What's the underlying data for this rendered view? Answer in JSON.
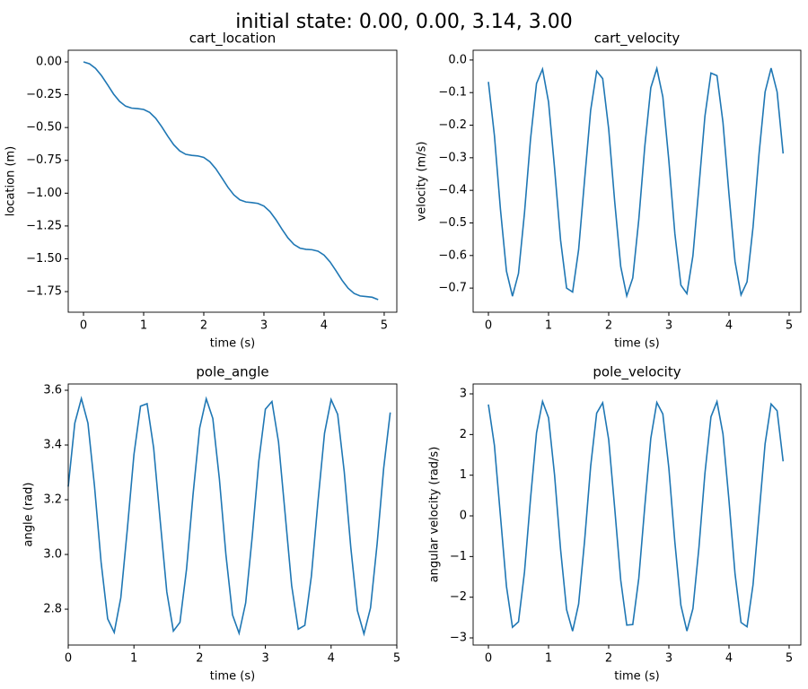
{
  "title": "initial state: 0.00, 0.00, 3.14, 3.00",
  "chart_data": [
    {
      "type": "line",
      "title": "cart_location",
      "xlabel": "time (s)",
      "ylabel": "location (m)",
      "x": [
        0,
        0.1,
        0.2,
        0.3,
        0.4,
        0.5,
        0.6,
        0.7,
        0.8,
        0.9,
        1,
        1.1,
        1.2,
        1.3,
        1.4,
        1.5,
        1.6,
        1.7,
        1.8,
        1.9,
        2,
        2.1,
        2.2,
        2.3,
        2.4,
        2.5,
        2.6,
        2.7,
        2.8,
        2.9,
        3,
        3.1,
        3.2,
        3.3,
        3.4,
        3.5,
        3.6,
        3.7,
        3.8,
        3.9,
        4,
        4.1,
        4.2,
        4.3,
        4.4,
        4.5,
        4.6,
        4.7,
        4.8,
        4.9
      ],
      "series": [
        {
          "color": "#1f77b4",
          "values": [
            0.0,
            -0.014,
            -0.049,
            -0.105,
            -0.174,
            -0.245,
            -0.301,
            -0.337,
            -0.352,
            -0.356,
            -0.362,
            -0.385,
            -0.429,
            -0.493,
            -0.565,
            -0.631,
            -0.678,
            -0.704,
            -0.712,
            -0.716,
            -0.728,
            -0.76,
            -0.814,
            -0.883,
            -0.954,
            -1.013,
            -1.051,
            -1.067,
            -1.072,
            -1.078,
            -1.098,
            -1.14,
            -1.202,
            -1.274,
            -1.341,
            -1.391,
            -1.419,
            -1.428,
            -1.431,
            -1.442,
            -1.472,
            -1.524,
            -1.592,
            -1.664,
            -1.724,
            -1.764,
            -1.783,
            -1.788,
            -1.793,
            -1.811
          ]
        }
      ],
      "xlim": [
        -0.254,
        5.21
      ],
      "ylim": [
        -1.907,
        0.089
      ],
      "xticks": [
        0,
        1,
        2,
        3,
        4,
        5
      ],
      "yticks": [
        {
          "value": -1.75,
          "label": "−1.75"
        },
        {
          "value": -1.5,
          "label": "−1.50"
        },
        {
          "value": -1.25,
          "label": "−1.25"
        },
        {
          "value": -1,
          "label": "−1.00"
        },
        {
          "value": -0.75,
          "label": "−0.75"
        },
        {
          "value": -0.5,
          "label": "−0.50"
        },
        {
          "value": -0.25,
          "label": "−0.25"
        },
        {
          "value": 0,
          "label": "0.00"
        }
      ]
    },
    {
      "type": "line",
      "title": "cart_velocity",
      "xlabel": "time (s)",
      "ylabel": "velocity (m/s)",
      "x": [
        0,
        0.1,
        0.2,
        0.3,
        0.4,
        0.5,
        0.6,
        0.7,
        0.8,
        0.9,
        1,
        1.1,
        1.2,
        1.3,
        1.4,
        1.5,
        1.6,
        1.7,
        1.8,
        1.9,
        2,
        2.1,
        2.2,
        2.3,
        2.4,
        2.5,
        2.6,
        2.7,
        2.8,
        2.9,
        3,
        3.1,
        3.2,
        3.3,
        3.4,
        3.5,
        3.6,
        3.7,
        3.8,
        3.9,
        4,
        4.1,
        4.2,
        4.3,
        4.4,
        4.5,
        4.6,
        4.7,
        4.8,
        4.9
      ],
      "series": [
        {
          "color": "#1f77b4",
          "values": [
            -0.067,
            -0.232,
            -0.458,
            -0.648,
            -0.725,
            -0.655,
            -0.469,
            -0.243,
            -0.072,
            -0.028,
            -0.129,
            -0.332,
            -0.553,
            -0.7,
            -0.712,
            -0.582,
            -0.366,
            -0.154,
            -0.034,
            -0.057,
            -0.212,
            -0.435,
            -0.634,
            -0.724,
            -0.669,
            -0.49,
            -0.265,
            -0.085,
            -0.026,
            -0.113,
            -0.309,
            -0.533,
            -0.691,
            -0.717,
            -0.601,
            -0.389,
            -0.172,
            -0.04,
            -0.048,
            -0.192,
            -0.412,
            -0.618,
            -0.721,
            -0.681,
            -0.512,
            -0.287,
            -0.098,
            -0.025,
            -0.098,
            -0.287
          ]
        }
      ],
      "xlim": [
        -0.254,
        5.194
      ],
      "ylim": [
        -0.774,
        0.03
      ],
      "xticks": [
        0,
        1,
        2,
        3,
        4,
        5
      ],
      "yticks": [
        {
          "value": -0.7,
          "label": "−0.7"
        },
        {
          "value": -0.6,
          "label": "−0.6"
        },
        {
          "value": -0.5,
          "label": "−0.5"
        },
        {
          "value": -0.4,
          "label": "−0.4"
        },
        {
          "value": -0.3,
          "label": "−0.3"
        },
        {
          "value": -0.2,
          "label": "−0.2"
        },
        {
          "value": -0.1,
          "label": "−0.1"
        },
        {
          "value": 0,
          "label": "0.0"
        }
      ]
    },
    {
      "type": "line",
      "title": "pole_angle",
      "xlabel": "time (s)",
      "ylabel": "angle (rad)",
      "x": [
        0,
        0.1,
        0.2,
        0.3,
        0.4,
        0.5,
        0.6,
        0.7,
        0.8,
        0.9,
        1,
        1.1,
        1.2,
        1.3,
        1.4,
        1.5,
        1.6,
        1.7,
        1.8,
        1.9,
        2,
        2.1,
        2.2,
        2.3,
        2.4,
        2.5,
        2.6,
        2.7,
        2.8,
        2.9,
        3,
        3.1,
        3.2,
        3.3,
        3.4,
        3.5,
        3.6,
        3.7,
        3.8,
        3.9,
        4,
        4.1,
        4.2,
        4.3,
        4.4,
        4.5,
        4.6,
        4.7,
        4.8,
        4.9
      ],
      "series": [
        {
          "color": "#1f77b4",
          "values": [
            3.248,
            3.48,
            3.57,
            3.48,
            3.249,
            2.972,
            2.765,
            2.715,
            2.842,
            3.094,
            3.365,
            3.542,
            3.551,
            3.389,
            3.122,
            2.863,
            2.72,
            2.752,
            2.946,
            3.221,
            3.462,
            3.569,
            3.497,
            3.276,
            2.998,
            2.779,
            2.712,
            2.823,
            3.066,
            3.341,
            3.531,
            3.559,
            3.411,
            3.15,
            2.886,
            2.727,
            2.741,
            2.921,
            3.193,
            3.443,
            3.566,
            3.512,
            3.302,
            3.025,
            2.795,
            2.71,
            2.805,
            3.038,
            3.315,
            3.519
          ]
        }
      ],
      "xlim": [
        0,
        5
      ],
      "ylim": [
        2.669,
        3.623
      ],
      "xticks": [
        0,
        1,
        2,
        3,
        4,
        5
      ],
      "yticks": [
        2.8,
        {
          "value": 3,
          "label": "3.0"
        },
        3.2,
        3.4,
        3.6
      ]
    },
    {
      "type": "line",
      "title": "pole_velocity",
      "xlabel": "time (s)",
      "ylabel": "angular velocity (rad/s)",
      "x": [
        0,
        0.1,
        0.2,
        0.3,
        0.4,
        0.5,
        0.6,
        0.7,
        0.8,
        0.9,
        1,
        1.1,
        1.2,
        1.3,
        1.4,
        1.5,
        1.6,
        1.7,
        1.8,
        1.9,
        2,
        2.1,
        2.2,
        2.3,
        2.4,
        2.5,
        2.6,
        2.7,
        2.8,
        2.9,
        3,
        3.1,
        3.2,
        3.3,
        3.4,
        3.5,
        3.6,
        3.7,
        3.8,
        3.9,
        4,
        4.1,
        4.2,
        4.3,
        4.4,
        4.5,
        4.6,
        4.7,
        4.8,
        4.9
      ],
      "series": [
        {
          "color": "#1f77b4",
          "values": [
            2.739,
            1.732,
            0.0,
            -1.731,
            -2.739,
            -2.604,
            -1.38,
            0.419,
            2.042,
            2.814,
            2.411,
            1.002,
            -0.826,
            -2.308,
            -2.834,
            -2.166,
            -0.601,
            1.219,
            2.525,
            2.78,
            1.874,
            0.186,
            -1.581,
            -2.685,
            -2.671,
            -1.538,
            0.232,
            1.91,
            2.788,
            2.504,
            1.174,
            -0.647,
            -2.198,
            -2.831,
            -2.283,
            -0.781,
            1.05,
            2.436,
            2.809,
            2.01,
            0.371,
            -1.423,
            -2.621,
            -2.727,
            -1.689,
            0.044,
            1.771,
            2.75,
            2.585,
            1.34
          ]
        }
      ],
      "xlim": [
        -0.254,
        5.194
      ],
      "ylim": [
        -3.176,
        3.243
      ],
      "xticks": [
        0,
        1,
        2,
        3,
        4,
        5
      ],
      "yticks": [
        {
          "value": -3,
          "label": "−3"
        },
        {
          "value": -2,
          "label": "−2"
        },
        {
          "value": -1,
          "label": "−1"
        },
        0,
        1,
        2,
        3
      ]
    }
  ]
}
